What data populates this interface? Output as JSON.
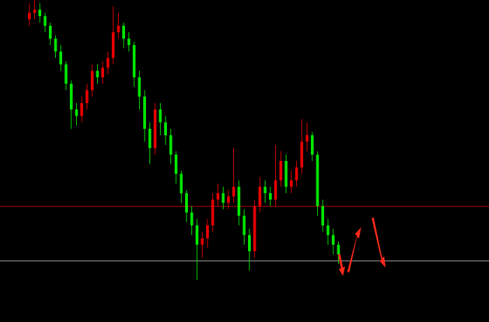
{
  "chart_data": {
    "type": "candlestick",
    "ylim": [
      0,
      100
    ],
    "up_color": "#e60000",
    "down_color": "#00e600",
    "open": [
      94,
      96,
      97,
      95,
      92,
      88,
      84,
      80,
      74,
      66,
      64,
      68,
      72,
      78,
      76,
      79,
      82,
      90,
      92,
      88,
      86,
      76,
      70,
      60,
      54,
      66,
      62,
      58,
      52,
      46,
      40,
      34,
      30,
      24,
      26,
      30,
      38,
      40,
      37,
      39,
      42,
      33,
      27,
      22,
      36,
      42,
      40,
      38,
      44,
      50,
      42,
      44,
      48,
      56,
      58,
      52,
      36,
      30,
      27,
      24
    ],
    "high": [
      99,
      100,
      99,
      96,
      93,
      89,
      86,
      81,
      75,
      68,
      70,
      74,
      80,
      80,
      81,
      84,
      98,
      96,
      93,
      90,
      87,
      78,
      72,
      62,
      68,
      68,
      64,
      60,
      53,
      47,
      41,
      36,
      32,
      28,
      32,
      40,
      43,
      42,
      41,
      54,
      44,
      35,
      29,
      38,
      45,
      44,
      42,
      55,
      53,
      52,
      47,
      50,
      63,
      62,
      59,
      53,
      38,
      32,
      29,
      25
    ],
    "low": [
      92,
      94,
      93,
      90,
      86,
      82,
      78,
      72,
      60,
      61,
      62,
      66,
      70,
      74,
      74,
      77,
      80,
      88,
      85,
      84,
      73,
      66,
      56,
      49,
      52,
      58,
      55,
      49,
      43,
      37,
      31,
      27,
      13,
      20,
      23,
      28,
      36,
      35,
      35,
      37,
      30,
      24,
      16,
      20,
      34,
      37,
      36,
      36,
      42,
      40,
      40,
      42,
      46,
      53,
      50,
      33,
      28,
      24,
      21,
      18
    ],
    "close": [
      96,
      97,
      95,
      92,
      88,
      84,
      80,
      74,
      66,
      64,
      68,
      72,
      78,
      76,
      79,
      82,
      90,
      92,
      88,
      86,
      76,
      70,
      60,
      54,
      66,
      62,
      58,
      52,
      46,
      40,
      34,
      30,
      24,
      26,
      30,
      38,
      40,
      37,
      39,
      42,
      33,
      27,
      22,
      36,
      42,
      40,
      38,
      44,
      50,
      42,
      44,
      48,
      56,
      58,
      52,
      36,
      30,
      27,
      24,
      21
    ],
    "levels": [
      {
        "value": 35.9,
        "color": "#c00000"
      },
      {
        "value": 19,
        "color": "#b0b0b0"
      }
    ]
  }
}
